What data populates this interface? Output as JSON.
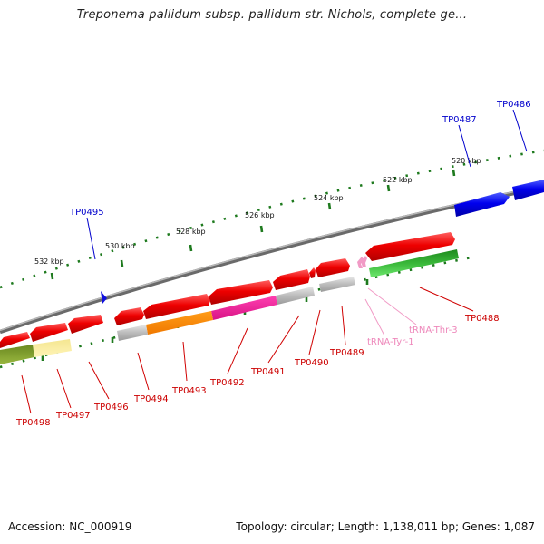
{
  "title": "Treponema pallidum subsp. pallidum str. Nichols, complete ge...",
  "footer": {
    "accession": "Accession: NC_000919",
    "topology": "Topology: circular; Length: 1,138,011 bp; Genes: 1,087"
  },
  "ruler_labels": [
    "520 kbp",
    "522 kbp",
    "524 kbp",
    "526 kbp",
    "528 kbp",
    "530 kbp",
    "532 kbp"
  ],
  "gene_labels": {
    "blue": [
      "TP0486",
      "TP0487",
      "TP0495"
    ],
    "red": [
      "TP0488",
      "TP0489",
      "TP0490",
      "TP0491",
      "TP0492",
      "TP0493",
      "TP0494",
      "TP0496",
      "TP0497",
      "TP0498"
    ],
    "pink": [
      "tRNA-Thr-3",
      "tRNA-Tyr-1"
    ]
  },
  "colors": {
    "backbone": "#888888",
    "ruler": "#1e7a1e",
    "gene_red": "#e00000",
    "gene_blue": "#0000e0",
    "label_red": "#cc0000",
    "label_blue": "#0000cc",
    "label_pink": "#ee88bb"
  }
}
